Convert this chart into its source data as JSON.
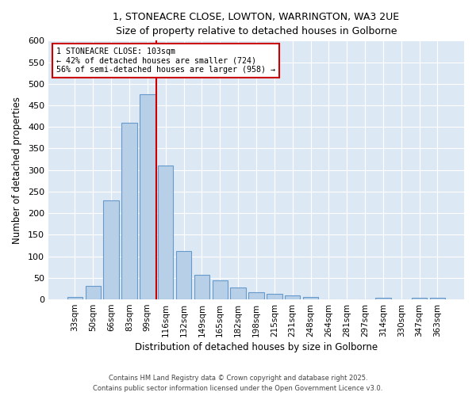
{
  "title_line1": "1, STONEACRE CLOSE, LOWTON, WARRINGTON, WA3 2UE",
  "title_line2": "Size of property relative to detached houses in Golborne",
  "xlabel": "Distribution of detached houses by size in Golborne",
  "ylabel": "Number of detached properties",
  "bar_labels": [
    "33sqm",
    "50sqm",
    "66sqm",
    "83sqm",
    "99sqm",
    "116sqm",
    "132sqm",
    "149sqm",
    "165sqm",
    "182sqm",
    "198sqm",
    "215sqm",
    "231sqm",
    "248sqm",
    "264sqm",
    "281sqm",
    "297sqm",
    "314sqm",
    "330sqm",
    "347sqm",
    "363sqm"
  ],
  "bar_values": [
    5,
    32,
    230,
    410,
    475,
    310,
    112,
    57,
    44,
    27,
    16,
    13,
    10,
    5,
    0,
    0,
    0,
    3,
    0,
    3,
    3
  ],
  "bar_color": "#b8cfe8",
  "bar_edge_color": "#6699cc",
  "vline_color": "#cc0000",
  "annotation_text": "1 STONEACRE CLOSE: 103sqm\n← 42% of detached houses are smaller (724)\n56% of semi-detached houses are larger (958) →",
  "annotation_box_color": "#ffffff",
  "annotation_box_edge": "#cc0000",
  "ylim": [
    0,
    600
  ],
  "yticks": [
    0,
    50,
    100,
    150,
    200,
    250,
    300,
    350,
    400,
    450,
    500,
    550,
    600
  ],
  "bg_color": "#dde8f5",
  "footer_line1": "Contains HM Land Registry data © Crown copyright and database right 2025.",
  "footer_line2": "Contains public sector information licensed under the Open Government Licence v3.0."
}
